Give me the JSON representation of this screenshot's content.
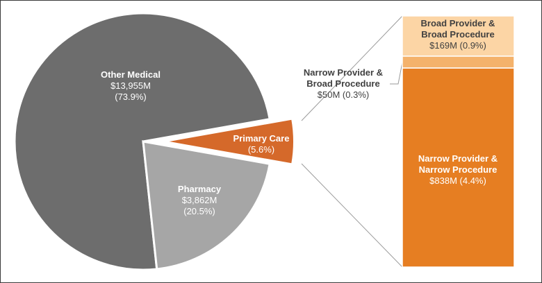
{
  "chart_data": [
    {
      "type": "pie",
      "slices": [
        {
          "name": "Other Medical",
          "value_text": "$13,955M",
          "percent": 73.9,
          "percent_text": "(73.9%)",
          "color": "#6d6d6d"
        },
        {
          "name": "Pharmacy",
          "value_text": "$3,862M",
          "percent": 20.5,
          "percent_text": "(20.5%)",
          "color": "#a6a6a6"
        },
        {
          "name": "Primary Care",
          "percent": 5.6,
          "percent_text": "(5.6%)",
          "color": "#d5692a",
          "exploded": true
        }
      ]
    },
    {
      "type": "bar",
      "stacked": true,
      "segments": [
        {
          "line1": "Narrow Provider &",
          "line2": "Narrow Procedure",
          "value_text": "$838M (4.4%)",
          "value": 838,
          "percent": 4.4,
          "color": "#e67e22"
        },
        {
          "line1": "Narrow Provider &",
          "line2": "Broad Procedure",
          "value_text": "$50M (0.3%)",
          "value": 50,
          "percent": 0.3,
          "color": "#f4b26b"
        },
        {
          "line1": "Broad Provider &",
          "line2": "Broad Procedure",
          "value_text": "$169M (0.9%)",
          "value": 169,
          "percent": 0.9,
          "color": "#fcd5a5"
        }
      ]
    }
  ]
}
